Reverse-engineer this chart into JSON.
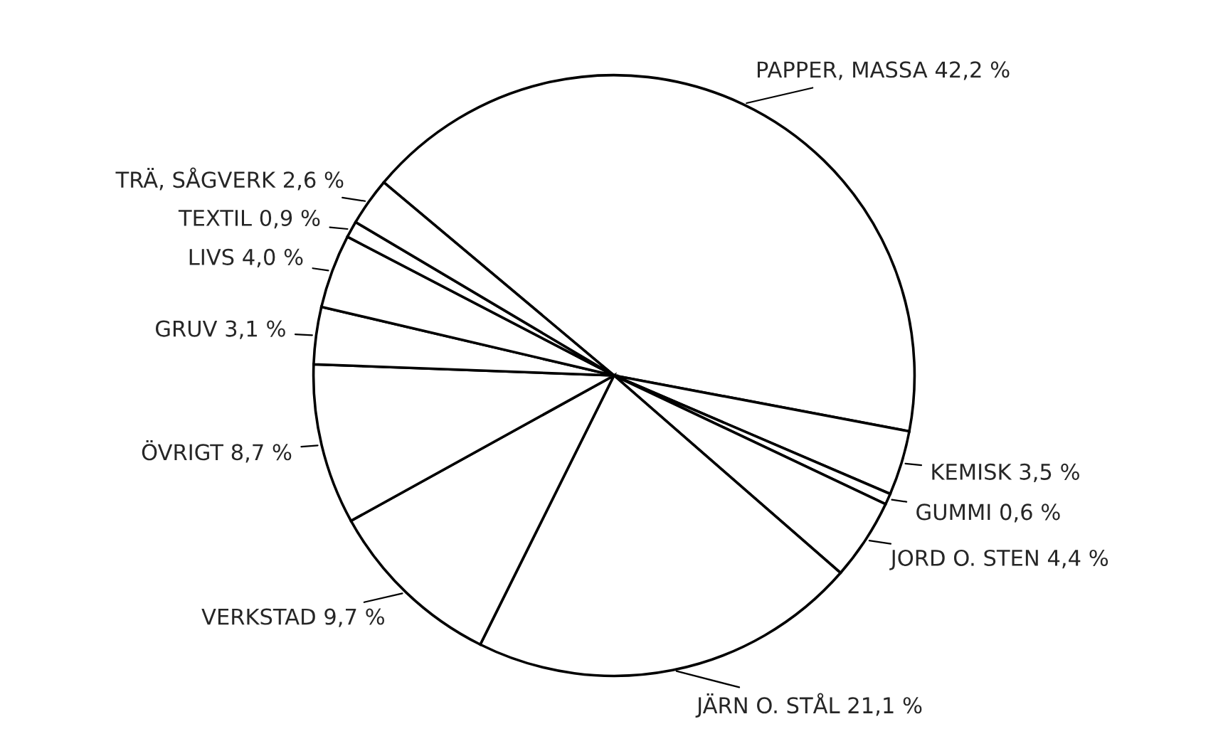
{
  "chart_data": {
    "type": "pie",
    "categories": [
      "PAPPER, MASSA",
      "KEMISK",
      "GUMMI",
      "JORD O. STEN",
      "JÄRN O. STÅL",
      "VERKSTAD",
      "ÖVRIGT",
      "GRUV",
      "LIVS",
      "TEXTIL",
      "TRÄ, SÅGVERK"
    ],
    "values": [
      42.2,
      3.5,
      0.6,
      4.4,
      21.1,
      9.7,
      8.7,
      3.1,
      4.0,
      0.9,
      2.6
    ],
    "value_labels": [
      "42,2 %",
      "3,5 %",
      "0,6 %",
      "4,4 %",
      "21,1 %",
      "9,7 %",
      "8,7 %",
      "3,1 %",
      "4,0 %",
      "0,9 %",
      "2,6 %"
    ],
    "colors": [
      "#ffffff",
      "#ffffff",
      "#ffffff",
      "#ffffff",
      "#ffffff",
      "#ffffff",
      "#ffffff",
      "#ffffff",
      "#ffffff",
      "#ffffff",
      "#ffffff"
    ],
    "legend": false
  }
}
